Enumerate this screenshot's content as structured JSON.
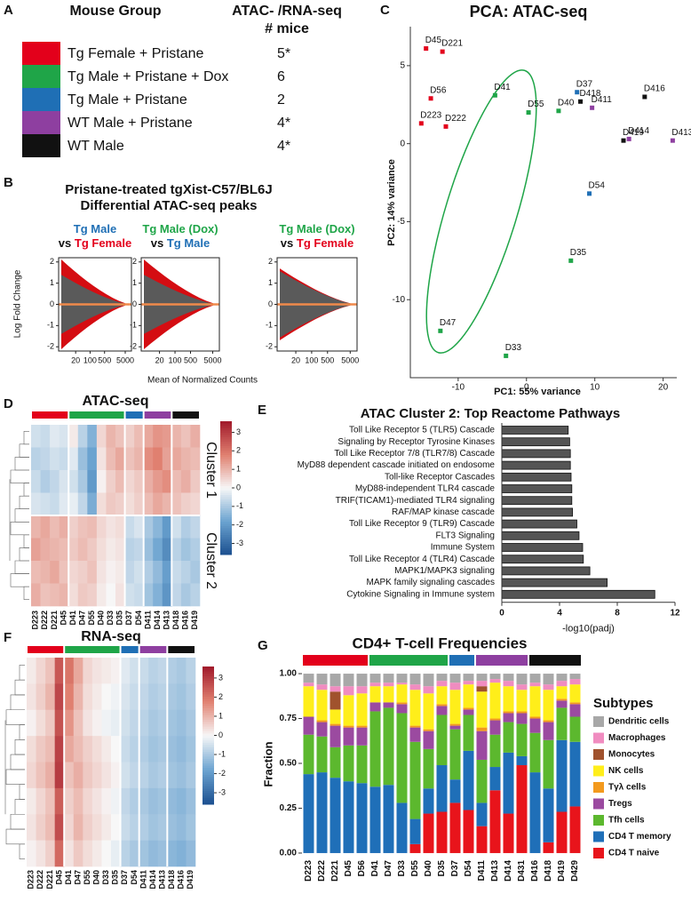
{
  "panel_labels": [
    "A",
    "B",
    "C",
    "D",
    "E",
    "F",
    "G"
  ],
  "table": {
    "header": [
      "Mouse Group",
      "ATAC- /RNA-seq",
      "# mice"
    ],
    "rows": [
      [
        "Tg Female + Pristane",
        "5*"
      ],
      [
        "Tg Male + Pristane + Dox",
        "6"
      ],
      [
        "Tg Male + Pristane",
        "2"
      ],
      [
        "WT Male + Pristane",
        "4*"
      ],
      [
        "WT Male",
        "4*"
      ]
    ],
    "colors": [
      "#e3001b",
      "#1fa548",
      "#1f6fb5",
      "#8e3fa0",
      "#111111"
    ]
  },
  "chart_data": [
    {
      "type": "ma",
      "title": [
        "Pristane-treated tgXist-C57/BL6J",
        "Differential ATAC-seq peaks"
      ],
      "ylabel": "Log Fold Change",
      "xlabel": "Mean of Normalized Counts",
      "panels": [
        {
          "title_lines": [
            [
              {
                "text": "Tg Male",
                "color": "#1f6fb5"
              }
            ],
            [
              {
                "text": "vs",
                "color": "#111111"
              },
              {
                "text": "Tg Female",
                "color": "#e3001b"
              }
            ]
          ]
        },
        {
          "title_lines": [
            [
              {
                "text": "Tg Male (Dox)",
                "color": "#1fa548"
              }
            ],
            [
              {
                "text": "vs",
                "color": "#111111"
              },
              {
                "text": "Tg Male",
                "color": "#1f6fb5"
              }
            ]
          ]
        },
        {
          "title_lines": [
            [
              {
                "text": "Tg Male (Dox)",
                "color": "#1fa548"
              }
            ],
            [
              {
                "text": "vs",
                "color": "#111111"
              },
              {
                "text": "Tg Female",
                "color": "#e3001b"
              }
            ]
          ]
        }
      ],
      "ylim": [
        -2.2,
        2.2
      ],
      "yticks": [
        -2,
        -1,
        0,
        1,
        2
      ],
      "xlim": [
        3,
        10000
      ],
      "xticks": [
        20,
        100,
        500,
        5000
      ],
      "log_x": true
    },
    {
      "type": "scatter",
      "title": "PCA: ATAC-seq",
      "xlabel": "PC1: 55% variance",
      "ylabel": "PC2: 14% variance",
      "labels": [
        "D45",
        "D221",
        "D56",
        "D223",
        "D222",
        "D41",
        "D55",
        "D40",
        "D37",
        "D418",
        "D411",
        "D416",
        "D419",
        "D414",
        "D413",
        "D54",
        "D35",
        "D47",
        "D33"
      ],
      "x": [
        -14.7,
        -12.3,
        -14,
        -15.4,
        -11.8,
        -4.6,
        0.3,
        4.7,
        7.4,
        7.9,
        9.6,
        17.3,
        14.2,
        15,
        21.4,
        9.2,
        6.5,
        -12.6,
        -3
      ],
      "values": [
        6.1,
        5.9,
        2.9,
        1.3,
        1.1,
        3.1,
        2,
        2.1,
        3.3,
        2.7,
        2.3,
        3,
        0.2,
        0.3,
        0.2,
        -3.2,
        -7.5,
        -12,
        -13.6
      ],
      "colors": [
        "#e3001b",
        "#e3001b",
        "#e3001b",
        "#e3001b",
        "#e3001b",
        "#1fa548",
        "#1fa548",
        "#1fa548",
        "#1f6fb5",
        "#111111",
        "#8e3fa0",
        "#111111",
        "#111111",
        "#8e3fa0",
        "#8e3fa0",
        "#1f6fb5",
        "#1fa548",
        "#1fa548",
        "#1fa548"
      ],
      "xlim": [
        -17,
        22
      ],
      "ylim": [
        -15,
        7.5
      ],
      "xticks": [
        -10,
        0,
        10,
        20
      ],
      "yticks": [
        -10,
        -5,
        0,
        5
      ]
    },
    {
      "type": "heatmap",
      "title": "ATAC-seq",
      "categories": [
        "D223",
        "D222",
        "D221",
        "D45",
        "D41",
        "D47",
        "D55",
        "D40",
        "D33",
        "D35",
        "D37",
        "D54",
        "D411",
        "D414",
        "D413",
        "D418",
        "D416",
        "D419"
      ],
      "label_colors": [
        "#e3001b",
        "#e3001b",
        "#e3001b",
        "#e3001b",
        "#1fa548",
        "#1fa548",
        "#1fa548",
        "#1fa548",
        "#1fa548",
        "#1fa548",
        "#1f6fb5",
        "#1f6fb5",
        "#8e3fa0",
        "#8e3fa0",
        "#8e3fa0",
        "#111111",
        "#111111",
        "#111111"
      ],
      "row_labels": [
        "Cluster 1",
        null,
        null,
        null,
        "Cluster 2",
        null,
        null,
        null
      ],
      "matrix": [
        [
          -0.5,
          -0.6,
          -0.3,
          -0.4,
          0.2,
          -0.8,
          -1.5,
          0.5,
          1.0,
          0.8,
          0.6,
          0.9,
          1.2,
          1.5,
          1.4,
          1.0,
          0.8,
          1.1
        ],
        [
          -0.8,
          -0.7,
          -0.5,
          -0.6,
          -0.3,
          -1.2,
          -1.8,
          0.3,
          0.9,
          1.2,
          0.8,
          1.0,
          1.6,
          1.8,
          1.3,
          1.2,
          1.0,
          0.9
        ],
        [
          -0.6,
          -0.9,
          -0.7,
          -0.4,
          -0.5,
          -1.0,
          -2.0,
          0.1,
          0.6,
          0.9,
          0.5,
          0.7,
          1.1,
          1.4,
          1.6,
          0.9,
          1.1,
          0.7
        ],
        [
          -0.4,
          -0.5,
          -0.6,
          -0.3,
          -0.2,
          -0.7,
          -1.6,
          0.4,
          0.7,
          0.6,
          0.4,
          0.6,
          0.9,
          1.2,
          1.0,
          0.8,
          0.6,
          0.5
        ],
        [
          1.0,
          1.2,
          0.9,
          1.1,
          0.6,
          0.8,
          0.9,
          0.5,
          0.3,
          0.4,
          -0.6,
          -0.4,
          -1.0,
          -1.4,
          -2.0,
          -0.5,
          -0.9,
          -0.7
        ],
        [
          1.3,
          1.1,
          1.0,
          0.9,
          0.7,
          0.9,
          0.7,
          0.4,
          0.2,
          0.3,
          -0.8,
          -0.7,
          -1.2,
          -1.7,
          -2.3,
          -0.8,
          -1.1,
          -0.9
        ],
        [
          0.9,
          1.0,
          1.2,
          0.8,
          0.5,
          0.6,
          0.8,
          0.3,
          0.1,
          0.2,
          -0.7,
          -0.5,
          -0.9,
          -1.3,
          -1.9,
          -0.6,
          -0.8,
          -1.0
        ],
        [
          1.1,
          0.8,
          0.9,
          1.0,
          0.4,
          0.7,
          0.6,
          0.2,
          0.0,
          0.3,
          -0.5,
          -0.6,
          -1.1,
          -1.5,
          -2.1,
          -0.7,
          -1.0,
          -0.8
        ]
      ],
      "zlim": [
        -3.6,
        3.6
      ],
      "colorbar_ticks": [
        3,
        2,
        1,
        0,
        -1,
        -2,
        -3
      ]
    },
    {
      "type": "hbar",
      "title": "ATAC Cluster 2: Top Reactome Pathways",
      "xlabel": "-log10(padj)",
      "categories": [
        "Toll Like Receptor 5 (TLR5) Cascade",
        "Signaling by Receptor Tyrosine Kinases",
        "Toll Like Receptor 7/8 (TLR7/8) Cascade",
        "MyD88 dependent cascade initiated on endosome",
        "Toll-like Receptor Cascades",
        "MyD88-independent TLR4 cascade",
        "TRIF(TICAM1)-mediated TLR4 signaling",
        "RAF/MAP kinase cascade",
        "Toll Like Receptor 9 (TLR9) Cascade",
        "FLT3 Signaling",
        "Immune System",
        "Toll Like Receptor 4 (TLR4) Cascade",
        "MAPK1/MAPK3 signaling",
        "MAPK family signaling cascades",
        "Cytokine Signaling in Immune system"
      ],
      "values": [
        4.6,
        4.7,
        4.75,
        4.75,
        4.8,
        4.85,
        4.85,
        4.9,
        5.2,
        5.35,
        5.6,
        5.65,
        6.1,
        7.3,
        10.6
      ],
      "color": "#555555",
      "xlim": [
        0,
        12
      ],
      "xticks": [
        0,
        4,
        8,
        12
      ]
    },
    {
      "type": "heatmap",
      "title": "RNA-seq",
      "categories": [
        "D223",
        "D222",
        "D221",
        "D45",
        "D41",
        "D47",
        "D55",
        "D40",
        "D33",
        "D35",
        "D37",
        "D54",
        "D411",
        "D414",
        "D413",
        "D418",
        "D416",
        "D419"
      ],
      "label_colors": [
        "#e3001b",
        "#e3001b",
        "#e3001b",
        "#e3001b",
        "#1fa548",
        "#1fa548",
        "#1fa548",
        "#1fa548",
        "#1fa548",
        "#1fa548",
        "#1f6fb5",
        "#1f6fb5",
        "#8e3fa0",
        "#8e3fa0",
        "#8e3fa0",
        "#111111",
        "#111111",
        "#111111"
      ],
      "matrix": [
        [
          0.2,
          0.5,
          0.8,
          2.5,
          2.0,
          1.2,
          0.5,
          0.3,
          0.2,
          0.1,
          -0.3,
          -0.5,
          -0.6,
          -0.8,
          -0.7,
          -0.9,
          -1.0,
          -0.8
        ],
        [
          0.3,
          0.6,
          1.0,
          2.8,
          1.8,
          1.0,
          0.4,
          0.2,
          0.0,
          -0.1,
          -0.4,
          -0.6,
          -0.7,
          -0.9,
          -0.8,
          -1.0,
          -1.1,
          -0.9
        ],
        [
          0.1,
          0.4,
          0.7,
          2.6,
          1.5,
          0.8,
          0.3,
          0.1,
          -0.1,
          -0.2,
          -0.5,
          -0.7,
          -0.8,
          -1.0,
          -0.9,
          -1.1,
          -1.2,
          -1.0
        ],
        [
          0.4,
          0.7,
          0.9,
          2.9,
          1.2,
          0.9,
          0.6,
          0.4,
          0.2,
          0.0,
          -0.6,
          -0.8,
          -0.9,
          -1.1,
          -1.0,
          -1.2,
          -1.3,
          -1.1
        ],
        [
          0.5,
          0.8,
          1.1,
          3.0,
          0.8,
          1.1,
          0.7,
          0.5,
          0.3,
          0.1,
          -0.5,
          -0.7,
          -0.8,
          -1.0,
          -0.9,
          -1.1,
          -1.2,
          -1.0
        ],
        [
          0.2,
          0.5,
          0.8,
          2.4,
          0.6,
          0.9,
          0.5,
          0.3,
          0.1,
          -0.1,
          -0.7,
          -0.9,
          -1.0,
          -1.2,
          -1.1,
          -1.3,
          -1.4,
          -1.2
        ],
        [
          0.3,
          0.6,
          0.9,
          2.7,
          0.5,
          1.0,
          0.6,
          0.4,
          0.2,
          0.0,
          -0.6,
          -0.8,
          -0.9,
          -1.1,
          -1.0,
          -1.2,
          -1.3,
          -1.1
        ],
        [
          0.1,
          0.3,
          0.6,
          2.2,
          0.3,
          0.7,
          0.4,
          0.2,
          0.0,
          -0.2,
          -0.8,
          -1.0,
          -1.1,
          -1.3,
          -1.2,
          -1.4,
          -1.5,
          -1.3
        ]
      ],
      "zlim": [
        -3.6,
        3.6
      ],
      "colorbar_ticks": [
        3,
        2,
        1,
        0,
        -1,
        -2,
        -3
      ]
    },
    {
      "type": "stacked_bar",
      "title": "CD4+ T-cell Frequencies",
      "ylabel": "Fraction",
      "legend_title": "Subtypes",
      "categories": [
        "D223",
        "D222",
        "D221",
        "D45",
        "D56",
        "D41",
        "D47",
        "D33",
        "D55",
        "D40",
        "D35",
        "D37",
        "D54",
        "D411",
        "D413",
        "D414",
        "D431",
        "D416",
        "D418",
        "D419",
        "D429"
      ],
      "label_colors": [
        "#e3001b",
        "#e3001b",
        "#e3001b",
        "#e3001b",
        "#e3001b",
        "#1fa548",
        "#1fa548",
        "#1fa548",
        "#1fa548",
        "#1fa548",
        "#1fa548",
        "#1f6fb5",
        "#1f6fb5",
        "#8e3fa0",
        "#8e3fa0",
        "#8e3fa0",
        "#8e3fa0",
        "#111111",
        "#111111",
        "#111111",
        "#111111"
      ],
      "ylim": [
        -0.03,
        1.03
      ],
      "yticks": [
        {
          "value": 0,
          "label": "0.00"
        },
        {
          "value": 0.25,
          "label": "0.25"
        },
        {
          "value": 0.5,
          "label": "0.50"
        },
        {
          "value": 0.75,
          "label": "0.75"
        },
        {
          "value": 1,
          "label": "1.00"
        }
      ],
      "series": [
        {
          "name": "CD4 T naive",
          "color": "#e8141b",
          "values": [
            0,
            0,
            0,
            0,
            0,
            0,
            0,
            0,
            0.05,
            0.22,
            0.23,
            0.28,
            0.24,
            0.15,
            0.35,
            0.22,
            0.49,
            0,
            0.06,
            0.23,
            0.26
          ]
        },
        {
          "name": "CD4 T memory",
          "color": "#1f6fb8",
          "values": [
            0.44,
            0.45,
            0.42,
            0.4,
            0.39,
            0.37,
            0.38,
            0.28,
            0.14,
            0.14,
            0.26,
            0.13,
            0.33,
            0.13,
            0.13,
            0.34,
            0.05,
            0.45,
            0.3,
            0.4,
            0.36
          ]
        },
        {
          "name": "Tfh cells",
          "color": "#5cb82e",
          "values": [
            0.22,
            0.2,
            0.17,
            0.2,
            0.21,
            0.42,
            0.43,
            0.5,
            0.43,
            0.22,
            0.28,
            0.28,
            0.2,
            0.24,
            0.18,
            0.17,
            0.18,
            0.22,
            0.27,
            0.18,
            0.14
          ]
        },
        {
          "name": "Tregs",
          "color": "#9b4aa0",
          "values": [
            0.1,
            0.08,
            0.12,
            0.1,
            0.1,
            0.05,
            0.03,
            0.05,
            0.08,
            0.1,
            0.05,
            0.02,
            0.03,
            0.16,
            0.08,
            0.05,
            0.06,
            0.08,
            0.1,
            0.04,
            0.07
          ]
        },
        {
          "name": "Tγλ cells",
          "color": "#f39a1e",
          "values": [
            0,
            0.01,
            0.01,
            0.01,
            0.01,
            0,
            0,
            0.01,
            0.01,
            0.01,
            0.01,
            0.01,
            0.01,
            0.02,
            0.01,
            0.01,
            0.01,
            0.01,
            0.01,
            0.01,
            0.01
          ]
        },
        {
          "name": "NK cells",
          "color": "#ffee1a",
          "values": [
            0.17,
            0.17,
            0.08,
            0.17,
            0.18,
            0.09,
            0.09,
            0.1,
            0.2,
            0.2,
            0.1,
            0.19,
            0.13,
            0.2,
            0.2,
            0.14,
            0.12,
            0.17,
            0.17,
            0.07,
            0.1
          ]
        },
        {
          "name": "Monocytes",
          "color": "#a0522d",
          "values": [
            0,
            0,
            0.1,
            0,
            0,
            0,
            0,
            0,
            0,
            0,
            0,
            0,
            0,
            0.03,
            0,
            0,
            0,
            0,
            0,
            0,
            0
          ]
        },
        {
          "name": "Macrophages",
          "color": "#f08cc0",
          "values": [
            0.02,
            0.03,
            0.03,
            0.05,
            0.04,
            0.02,
            0.02,
            0.01,
            0.03,
            0.04,
            0.03,
            0.04,
            0.02,
            0.03,
            0.02,
            0.03,
            0.03,
            0.02,
            0.03,
            0.03,
            0.03
          ]
        },
        {
          "name": "Dendritic cells",
          "color": "#a8a8a8",
          "values": [
            0.05,
            0.06,
            0.07,
            0.07,
            0.07,
            0.05,
            0.05,
            0.05,
            0.06,
            0.07,
            0.04,
            0.05,
            0.04,
            0.04,
            0.03,
            0.04,
            0.06,
            0.05,
            0.06,
            0.04,
            0.03
          ]
        }
      ]
    }
  ]
}
